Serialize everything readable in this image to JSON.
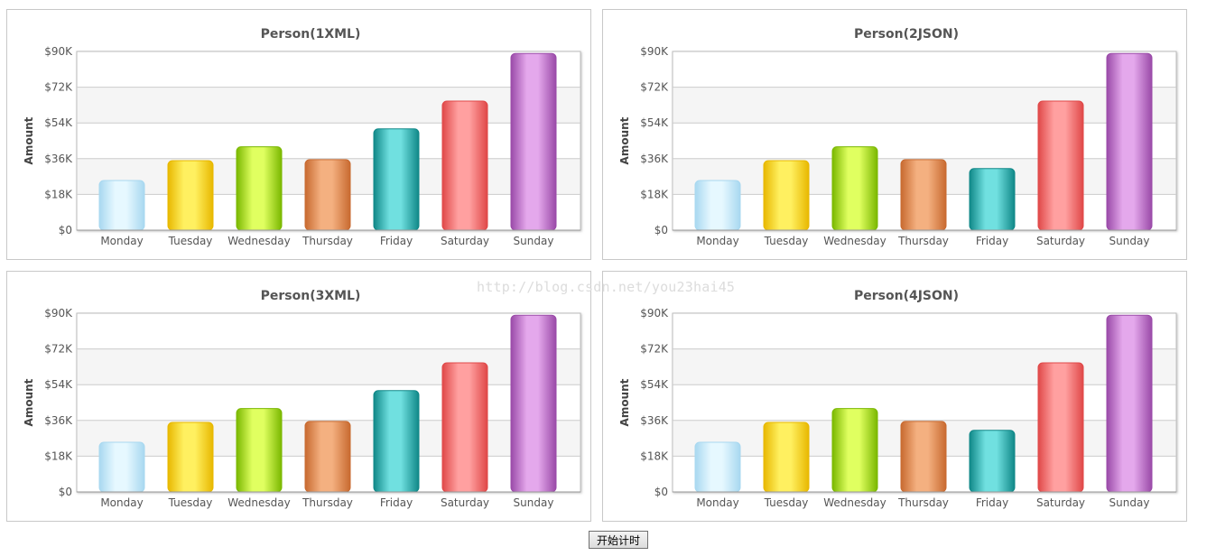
{
  "watermark": "http://blog.csdn.net/you23hai45",
  "start_button_label": "开始计时",
  "colors": {
    "Monday": [
      "#a8d8f0",
      "#e6f8ff"
    ],
    "Tuesday": [
      "#e8b800",
      "#fff060"
    ],
    "Wednesday": [
      "#7ab800",
      "#e0ff60"
    ],
    "Thursday": [
      "#c86a30",
      "#f4b080"
    ],
    "Friday": [
      "#108888",
      "#70e0e0"
    ],
    "Saturday": [
      "#e04848",
      "#ffa0a0"
    ],
    "Sunday": [
      "#9a4aa8",
      "#e4a8ec"
    ]
  },
  "chart_data": [
    {
      "type": "bar",
      "title": "Person(1XML)",
      "ylabel": "Amount",
      "xlabel": "",
      "categories": [
        "Monday",
        "Tuesday",
        "Wednesday",
        "Thursday",
        "Friday",
        "Saturday",
        "Sunday"
      ],
      "values": [
        25000,
        35000,
        42000,
        35500,
        51000,
        65000,
        89000
      ],
      "ylim": [
        0,
        90000
      ],
      "yticks": [
        "$0",
        "$18K",
        "$36K",
        "$54K",
        "$72K",
        "$90K"
      ],
      "grid": true,
      "legend": "none"
    },
    {
      "type": "bar",
      "title": "Person(2JSON)",
      "ylabel": "Amount",
      "xlabel": "",
      "categories": [
        "Monday",
        "Tuesday",
        "Wednesday",
        "Thursday",
        "Friday",
        "Saturday",
        "Sunday"
      ],
      "values": [
        25000,
        35000,
        42000,
        35500,
        31000,
        65000,
        89000
      ],
      "ylim": [
        0,
        90000
      ],
      "yticks": [
        "$0",
        "$18K",
        "$36K",
        "$54K",
        "$72K",
        "$90K"
      ],
      "grid": true,
      "legend": "none"
    },
    {
      "type": "bar",
      "title": "Person(3XML)",
      "ylabel": "Amount",
      "xlabel": "",
      "categories": [
        "Monday",
        "Tuesday",
        "Wednesday",
        "Thursday",
        "Friday",
        "Saturday",
        "Sunday"
      ],
      "values": [
        25000,
        35000,
        42000,
        35500,
        51000,
        65000,
        89000
      ],
      "ylim": [
        0,
        90000
      ],
      "yticks": [
        "$0",
        "$18K",
        "$36K",
        "$54K",
        "$72K",
        "$90K"
      ],
      "grid": true,
      "legend": "none"
    },
    {
      "type": "bar",
      "title": "Person(4JSON)",
      "ylabel": "Amount",
      "xlabel": "",
      "categories": [
        "Monday",
        "Tuesday",
        "Wednesday",
        "Thursday",
        "Friday",
        "Saturday",
        "Sunday"
      ],
      "values": [
        25000,
        35000,
        42000,
        35500,
        31000,
        65000,
        89000
      ],
      "ylim": [
        0,
        90000
      ],
      "yticks": [
        "$0",
        "$18K",
        "$36K",
        "$54K",
        "$72K",
        "$90K"
      ],
      "grid": true,
      "legend": "none"
    }
  ]
}
